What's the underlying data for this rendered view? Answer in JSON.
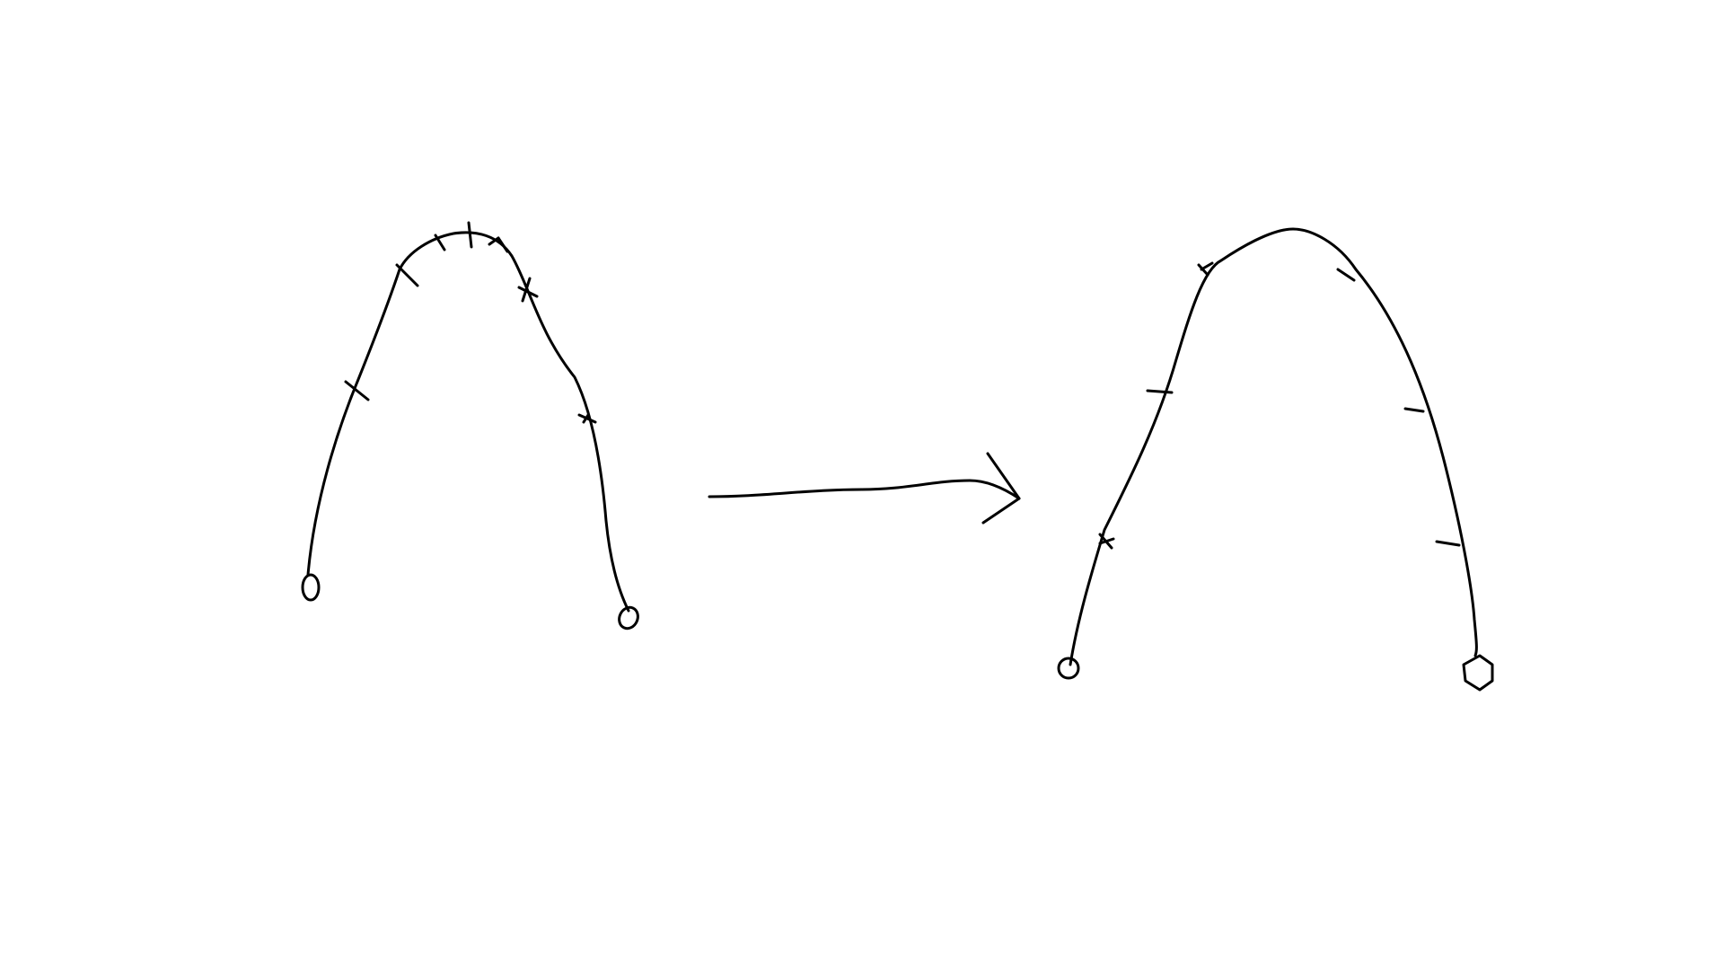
{
  "colors": {
    "background": "#ffffff",
    "ink": "#000000"
  },
  "diagram": {
    "left_figure": {
      "description_id": "arch-before",
      "tick_count": 9,
      "endpoint_count": 2
    },
    "arrow": {
      "direction": "right"
    },
    "right_figure": {
      "description_id": "arch-after",
      "tick_count": 6,
      "endpoint_count": 2
    }
  }
}
